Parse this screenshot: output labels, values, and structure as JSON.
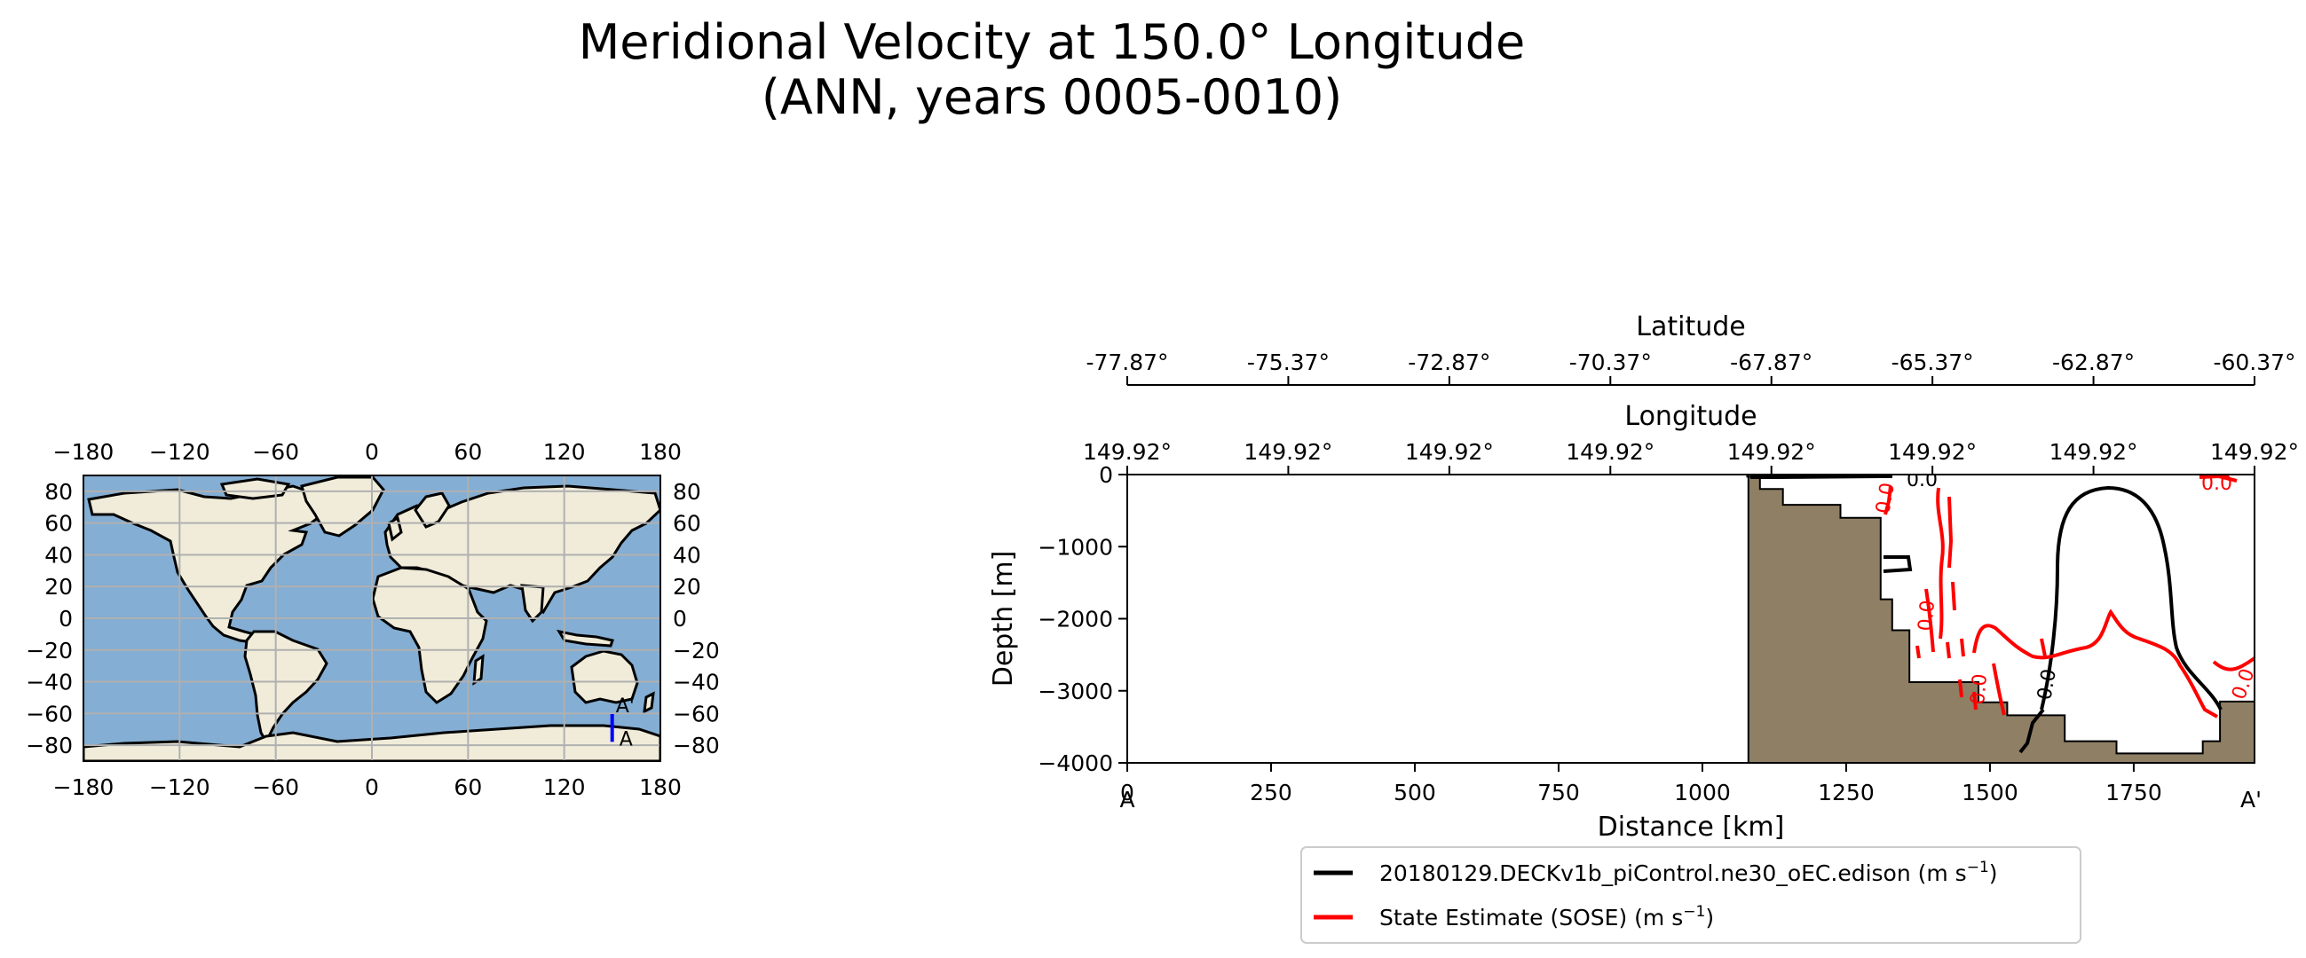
{
  "title_line1": "Meridional Velocity at 150.0° Longitude",
  "title_line2": "(ANN, years 0005-0010)",
  "colors": {
    "ocean": "#84aed3",
    "land": "#f0ecd9",
    "bathymetry": "#8e7f65",
    "model_contour": "#000000",
    "sose_contour": "#ff0000",
    "transect": "#0000ff",
    "grid": "#b0b0b0"
  },
  "chart_data": [
    {
      "type": "map",
      "name": "transect-location-map",
      "xlim": [
        -180,
        180
      ],
      "ylim": [
        -90,
        90
      ],
      "x_ticks": [
        "−180",
        "−120",
        "−60",
        "0",
        "60",
        "120",
        "180"
      ],
      "x_tick_values": [
        -180,
        -120,
        -60,
        0,
        60,
        120,
        180
      ],
      "y_ticks_left": [
        "80",
        "60",
        "40",
        "20",
        "0",
        "−20",
        "−40",
        "−60",
        "−80"
      ],
      "y_ticks_right": [
        "80",
        "60",
        "40",
        "20",
        "0",
        "−20",
        "−40",
        "−60",
        "−80"
      ],
      "y_tick_values": [
        80,
        60,
        40,
        20,
        0,
        -20,
        -40,
        -60,
        -80
      ],
      "transect": {
        "lon": 149.92,
        "lat_start": -77.87,
        "lat_end": -60.37,
        "start_label": "A",
        "end_label": "A'"
      }
    },
    {
      "type": "contour-section",
      "name": "meridional-velocity-section",
      "xlabel": "Distance [km]",
      "ylabel": "Depth [m]",
      "xlim": [
        0,
        1960
      ],
      "ylim": [
        -4000,
        0
      ],
      "x_ticks": [
        "0",
        "250",
        "500",
        "750",
        "1000",
        "1250",
        "1500",
        "1750"
      ],
      "x_tick_values": [
        0,
        250,
        500,
        750,
        1000,
        1250,
        1500,
        1750
      ],
      "y_ticks": [
        "0",
        "−1000",
        "−2000",
        "−3000",
        "−4000"
      ],
      "y_tick_values": [
        0,
        -1000,
        -2000,
        -3000,
        -4000
      ],
      "section_start_label": "A",
      "section_end_label": "A'",
      "top_axis_lon_label": "Longitude",
      "top_axis_lon_ticks": [
        "149.92°",
        "149.92°",
        "149.92°",
        "149.92°",
        "149.92°",
        "149.92°",
        "149.92°",
        "149.92°"
      ],
      "top_axis_lat_label": "Latitude",
      "top_axis_lat_ticks": [
        "-77.87°",
        "-75.37°",
        "-72.87°",
        "-70.37°",
        "-67.87°",
        "-65.37°",
        "-62.87°",
        "-60.37°"
      ],
      "contour_level_label": "0.0",
      "bathymetry": [
        [
          0,
          -4000
        ],
        [
          1080,
          -4000
        ],
        [
          1080,
          0
        ],
        [
          1078,
          0
        ],
        [
          1078,
          -30
        ],
        [
          1100,
          -30
        ],
        [
          1100,
          -200
        ],
        [
          1140,
          -200
        ],
        [
          1140,
          -420
        ],
        [
          1240,
          -420
        ],
        [
          1240,
          -600
        ],
        [
          1310,
          -600
        ],
        [
          1310,
          -1730
        ],
        [
          1330,
          -1730
        ],
        [
          1330,
          -2160
        ],
        [
          1360,
          -2160
        ],
        [
          1360,
          -2880
        ],
        [
          1480,
          -2880
        ],
        [
          1480,
          -3160
        ],
        [
          1530,
          -3160
        ],
        [
          1530,
          -3340
        ],
        [
          1630,
          -3340
        ],
        [
          1630,
          -3700
        ],
        [
          1720,
          -3700
        ],
        [
          1720,
          -3870
        ],
        [
          1870,
          -3870
        ],
        [
          1870,
          -3700
        ],
        [
          1900,
          -3700
        ],
        [
          1900,
          -3150
        ],
        [
          1960,
          -3150
        ],
        [
          1960,
          -4000
        ]
      ],
      "legend": [
        {
          "label": "20180129.DECKv1b_piControl.ne30_oEC.edison (m s",
          "unit_exp": "−1",
          "close": ")",
          "color": "#000000"
        },
        {
          "label": "State Estimate (SOSE) (m s",
          "unit_exp": "−1",
          "close": ")",
          "color": "#ff0000"
        }
      ]
    }
  ]
}
